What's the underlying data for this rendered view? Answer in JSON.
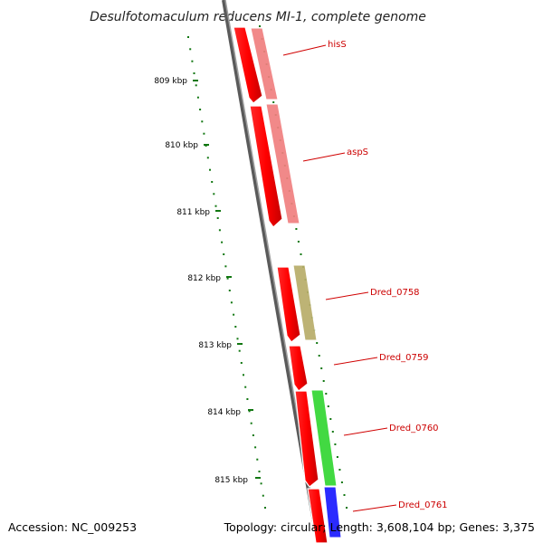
{
  "title": "Desulfotomaculum reducens MI-1, complete genome",
  "colors": {
    "backbone": "#7a7a7a",
    "tick": "#117711",
    "label_line": "#d00000",
    "label_text": "#cc0000"
  },
  "ticks": [
    "809 kbp",
    "810 kbp",
    "811 kbp",
    "812 kbp",
    "813 kbp",
    "814 kbp",
    "815 kbp"
  ],
  "genes": [
    {
      "id": "cds-1",
      "strand": "-",
      "color": "#ff0000"
    },
    {
      "id": "cds-2",
      "strand": "-",
      "color": "#ff0000"
    },
    {
      "id": "cds-3",
      "strand": "-",
      "color": "#ff0000"
    },
    {
      "id": "cds-4",
      "strand": "-",
      "color": "#ff0000"
    },
    {
      "id": "cds-5",
      "strand": "-",
      "color": "#ff0000"
    },
    {
      "id": "cds-6",
      "strand": "-",
      "color": "#ff0000"
    },
    {
      "id": "hisS",
      "color": "#f08080"
    },
    {
      "id": "aspS",
      "color": "#f08080"
    },
    {
      "id": "Dred_0758",
      "color": "#b8ad6a"
    },
    {
      "id": "Dred_0760",
      "color": "#33d633"
    },
    {
      "id": "Dred_0761",
      "color": "#1a1aff"
    }
  ],
  "labels": [
    "hisS",
    "aspS",
    "Dred_0758",
    "Dred_0759",
    "Dred_0760",
    "Dred_0761"
  ],
  "footer": {
    "accession": "Accession: NC_009253",
    "stats": "Topology: circular; Length: 3,608,104 bp; Genes: 3,375"
  }
}
